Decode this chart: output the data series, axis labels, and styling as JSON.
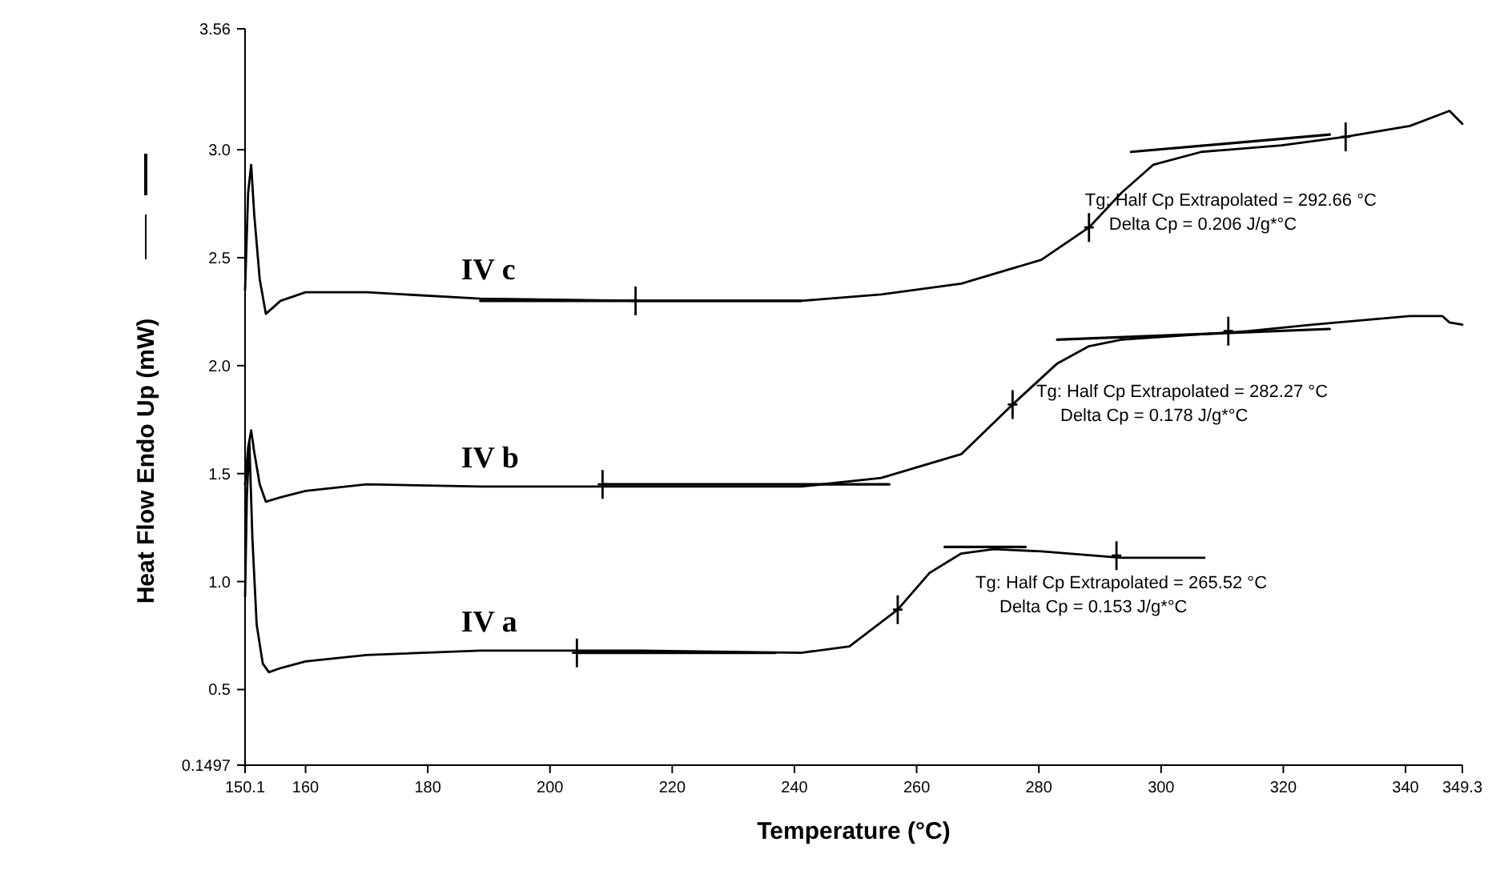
{
  "chart_data": {
    "type": "line",
    "xlabel": "Temperature (°C)",
    "ylabel": "Heat Flow Endo Up (mW)",
    "xlim": [
      150.1,
      349.3
    ],
    "xticks": [
      150.1,
      160,
      180,
      200,
      220,
      240,
      260,
      280,
      300,
      320,
      340,
      349.3
    ],
    "ylim": [
      0.1497,
      3.56
    ],
    "yticks": [
      0.1497,
      {
        "value": 0.5,
        "label": "0.5"
      },
      {
        "value": 1,
        "label": "1.0"
      },
      {
        "value": 1.5,
        "label": "1.5"
      },
      {
        "value": 2,
        "label": "2.0"
      },
      {
        "value": 2.5,
        "label": "2.5"
      },
      {
        "value": 3,
        "label": "3.0"
      },
      3.56
    ],
    "grid": false,
    "line_style": "solid",
    "series": [
      {
        "name": "IV c",
        "color": "#000000",
        "x": [
          150.1,
          150.6,
          151.1,
          151.6,
          152.5,
          153.5,
          155.9,
          160,
          170,
          188.6,
          214.8,
          241.1,
          254.2,
          267.3,
          280.4,
          288.2,
          293.5,
          298.7,
          306.6,
          319.7,
          330.2,
          340.7,
          347.2,
          349.3
        ],
        "values": [
          2.35,
          2.8,
          2.93,
          2.7,
          2.4,
          2.24,
          2.3,
          2.34,
          2.34,
          2.31,
          2.3,
          2.3,
          2.33,
          2.38,
          2.49,
          2.64,
          2.8,
          2.93,
          2.99,
          3.02,
          3.06,
          3.11,
          3.18,
          3.12
        ]
      },
      {
        "name": "IV b",
        "color": "#000000",
        "x": [
          150.1,
          150.6,
          151.1,
          151.6,
          152.5,
          153.5,
          155.9,
          160,
          170,
          188.6,
          214.8,
          241.1,
          254.2,
          267.3,
          275.7,
          283,
          288.2,
          293.5,
          314.3,
          324.8,
          340.7,
          346,
          347.2,
          349.3
        ],
        "values": [
          1.45,
          1.62,
          1.7,
          1.6,
          1.45,
          1.37,
          1.39,
          1.42,
          1.45,
          1.44,
          1.44,
          1.44,
          1.48,
          1.59,
          1.82,
          2.01,
          2.09,
          2.12,
          2.16,
          2.19,
          2.23,
          2.23,
          2.2,
          2.19
        ]
      },
      {
        "name": "IV a",
        "color": "#000000",
        "x": [
          150.1,
          150.4,
          150.8,
          151.3,
          152,
          153,
          154,
          156,
          160,
          170,
          188.6,
          214.8,
          241.1,
          249,
          256.9,
          262.1,
          267.3,
          272.6,
          280.4,
          293.5,
          307.1
        ],
        "values": [
          0.93,
          1.4,
          1.65,
          1.2,
          0.8,
          0.62,
          0.58,
          0.6,
          0.63,
          0.66,
          0.68,
          0.68,
          0.67,
          0.7,
          0.87,
          1.04,
          1.13,
          1.15,
          1.14,
          1.11,
          1.11
        ]
      },
      {
        "type": "line",
        "color": "#000000",
        "x": [
          188.6,
          241.1
        ],
        "values": [
          2.3,
          2.3
        ]
      },
      {
        "type": "line",
        "color": "#000000",
        "x": [
          295.1,
          327.6
        ],
        "values": [
          2.99,
          3.07
        ]
      },
      {
        "type": "line",
        "color": "#000000",
        "x": [
          208.6,
          255.5
        ],
        "values": [
          1.45,
          1.45
        ]
      },
      {
        "type": "line",
        "color": "#000000",
        "x": [
          283,
          327.6
        ],
        "values": [
          2.12,
          2.17
        ]
      },
      {
        "type": "line",
        "color": "#000000",
        "x": [
          204.4,
          236.9
        ],
        "values": [
          0.67,
          0.67
        ]
      },
      {
        "type": "line",
        "color": "#000000",
        "x": [
          264.6,
          277.8
        ],
        "values": [
          1.16,
          1.16
        ]
      },
      {
        "type": "scatter",
        "marker": "cross",
        "color": "#000000",
        "x": [
          214,
          288.2,
          330.2,
          208.6,
          275.7,
          311,
          204.4,
          256.9,
          292.7
        ],
        "values": [
          2.3,
          2.64,
          3.06,
          1.45,
          1.82,
          2.16,
          0.67,
          0.87,
          1.12
        ]
      }
    ],
    "annotations": [
      "Tg: Half Cp Extrapolated = 292.66 °C\nDelta Cp = 0.206 J/g*°C",
      "Tg: Half Cp Extrapolated = 282.27 °C\nDelta Cp = 0.178 J/g*°C",
      "Tg: Half Cp Extrapolated = 265.52 °C\nDelta Cp = 0.153 J/g*°C"
    ]
  }
}
